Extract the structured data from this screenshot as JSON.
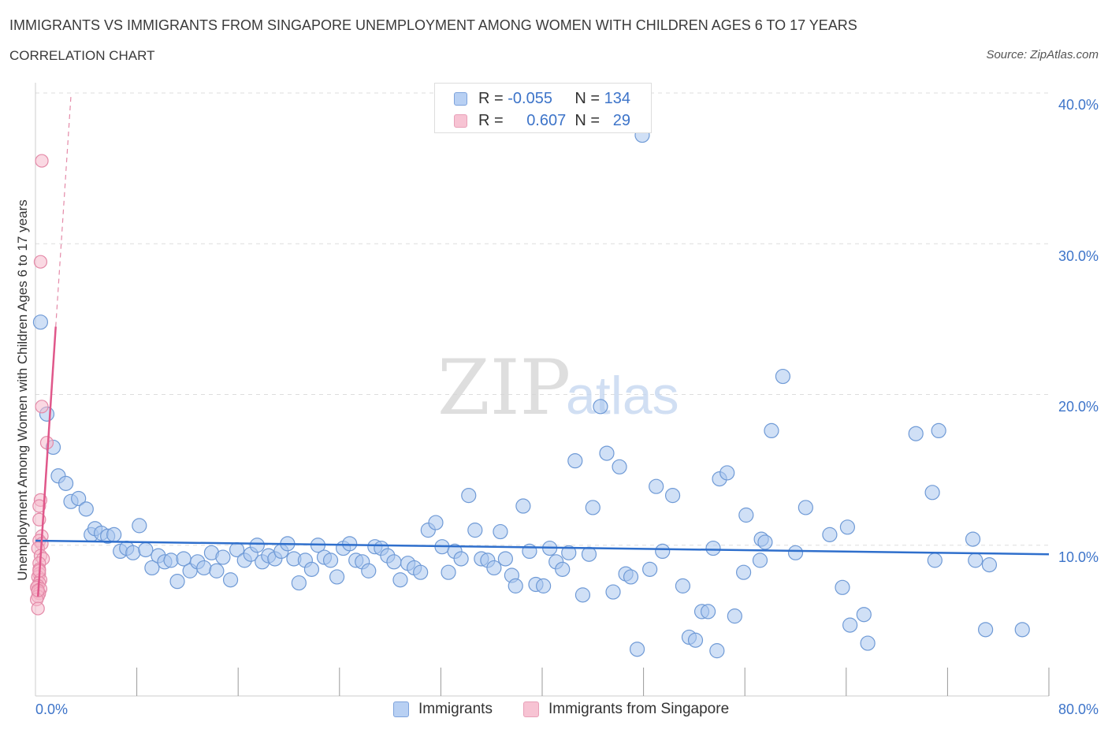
{
  "title": "IMMIGRANTS VS IMMIGRANTS FROM SINGAPORE UNEMPLOYMENT AMONG WOMEN WITH CHILDREN AGES 6 TO 17 YEARS",
  "subtitle": "CORRELATION CHART",
  "source": "Source: ZipAtlas.com",
  "watermark": {
    "zip": "ZIP",
    "atlas": "atlas"
  },
  "legend_top": {
    "rows": [
      {
        "r_label": "R =",
        "r_value": "-0.055",
        "n_label": "N =",
        "n_value": "134"
      },
      {
        "r_label": "R =",
        "r_value": "0.607",
        "n_label": "N =",
        "n_value": "29"
      }
    ]
  },
  "legend_bottom": {
    "immigrants": "Immigrants",
    "singapore": "Immigrants from Singapore"
  },
  "colors": {
    "blue_fill": "#a9c6ef",
    "blue_stroke": "#6f9ad6",
    "blue_line": "#2f6fcc",
    "pink_fill": "#f6b9cc",
    "pink_stroke": "#e48aa8",
    "pink_line": "#e0578a",
    "tick_text": "#3d74c9",
    "grid": "#dddddd"
  },
  "chart_data": {
    "type": "scatter",
    "title": "IMMIGRANTS VS IMMIGRANTS FROM SINGAPORE UNEMPLOYMENT AMONG WOMEN WITH CHILDREN AGES 6 TO 17 YEARS",
    "xlabel": "",
    "ylabel": "Unemployment Among Women with Children Ages 6 to 17 years",
    "xlim": [
      0,
      80
    ],
    "ylim": [
      0,
      40
    ],
    "x_tick_labels": [
      "0.0%",
      "80.0%"
    ],
    "y_ticks": [
      10,
      20,
      30,
      40
    ],
    "y_tick_labels": [
      "10.0%",
      "20.0%",
      "30.0%",
      "40.0%"
    ],
    "grid": true,
    "series": [
      {
        "name": "Immigrants",
        "r": -0.055,
        "n": 134,
        "trend": {
          "x": [
            0,
            80
          ],
          "y": [
            10.3,
            9.4
          ]
        },
        "points": [
          [
            0.4,
            24.8
          ],
          [
            0.9,
            18.7
          ],
          [
            1.4,
            16.5
          ],
          [
            1.8,
            14.6
          ],
          [
            2.4,
            14.1
          ],
          [
            2.8,
            12.9
          ],
          [
            3.4,
            13.1
          ],
          [
            4.0,
            12.4
          ],
          [
            4.4,
            10.7
          ],
          [
            4.7,
            11.1
          ],
          [
            5.2,
            10.8
          ],
          [
            5.7,
            10.6
          ],
          [
            6.2,
            10.7
          ],
          [
            6.7,
            9.6
          ],
          [
            7.2,
            9.8
          ],
          [
            7.7,
            9.5
          ],
          [
            8.2,
            11.3
          ],
          [
            8.7,
            9.7
          ],
          [
            9.2,
            8.5
          ],
          [
            9.7,
            9.3
          ],
          [
            10.2,
            8.9
          ],
          [
            10.7,
            9.0
          ],
          [
            11.2,
            7.6
          ],
          [
            11.7,
            9.1
          ],
          [
            12.2,
            8.3
          ],
          [
            12.8,
            8.9
          ],
          [
            13.3,
            8.5
          ],
          [
            13.9,
            9.5
          ],
          [
            14.3,
            8.3
          ],
          [
            14.8,
            9.2
          ],
          [
            15.4,
            7.7
          ],
          [
            15.9,
            9.7
          ],
          [
            16.5,
            9.0
          ],
          [
            17.0,
            9.4
          ],
          [
            17.5,
            10.0
          ],
          [
            17.9,
            8.9
          ],
          [
            18.4,
            9.3
          ],
          [
            18.9,
            9.1
          ],
          [
            19.4,
            9.6
          ],
          [
            19.9,
            10.1
          ],
          [
            20.4,
            9.1
          ],
          [
            20.8,
            7.5
          ],
          [
            21.3,
            9.0
          ],
          [
            21.8,
            8.4
          ],
          [
            22.3,
            10.0
          ],
          [
            22.8,
            9.2
          ],
          [
            23.3,
            9.0
          ],
          [
            23.8,
            7.9
          ],
          [
            24.3,
            9.8
          ],
          [
            24.8,
            10.1
          ],
          [
            25.3,
            9.0
          ],
          [
            25.8,
            8.9
          ],
          [
            26.3,
            8.3
          ],
          [
            26.8,
            9.9
          ],
          [
            27.3,
            9.8
          ],
          [
            27.8,
            9.3
          ],
          [
            28.3,
            8.9
          ],
          [
            28.8,
            7.7
          ],
          [
            29.4,
            8.8
          ],
          [
            29.9,
            8.5
          ],
          [
            30.4,
            8.2
          ],
          [
            31.0,
            11.0
          ],
          [
            31.6,
            11.5
          ],
          [
            32.1,
            9.9
          ],
          [
            32.6,
            8.2
          ],
          [
            33.1,
            9.6
          ],
          [
            33.6,
            9.1
          ],
          [
            34.2,
            13.3
          ],
          [
            34.7,
            11.0
          ],
          [
            35.2,
            9.1
          ],
          [
            35.7,
            9.0
          ],
          [
            36.2,
            8.5
          ],
          [
            36.7,
            10.9
          ],
          [
            37.1,
            9.1
          ],
          [
            37.6,
            8.0
          ],
          [
            37.9,
            7.3
          ],
          [
            38.5,
            12.6
          ],
          [
            39.0,
            9.6
          ],
          [
            39.5,
            7.4
          ],
          [
            40.1,
            7.3
          ],
          [
            40.6,
            9.8
          ],
          [
            41.1,
            8.9
          ],
          [
            41.6,
            8.4
          ],
          [
            42.1,
            9.5
          ],
          [
            42.6,
            15.6
          ],
          [
            43.2,
            6.7
          ],
          [
            43.7,
            9.4
          ],
          [
            44.0,
            12.5
          ],
          [
            44.6,
            19.2
          ],
          [
            45.1,
            16.1
          ],
          [
            45.6,
            6.9
          ],
          [
            46.1,
            15.2
          ],
          [
            46.6,
            8.1
          ],
          [
            47.0,
            7.9
          ],
          [
            47.5,
            3.1
          ],
          [
            47.9,
            37.2
          ],
          [
            48.5,
            8.4
          ],
          [
            49.0,
            13.9
          ],
          [
            49.5,
            9.6
          ],
          [
            50.3,
            13.3
          ],
          [
            51.1,
            7.3
          ],
          [
            51.6,
            3.9
          ],
          [
            52.1,
            3.7
          ],
          [
            52.6,
            5.6
          ],
          [
            53.1,
            5.6
          ],
          [
            53.5,
            9.8
          ],
          [
            53.8,
            3.0
          ],
          [
            54.0,
            14.4
          ],
          [
            54.6,
            14.8
          ],
          [
            55.2,
            5.3
          ],
          [
            56.1,
            12.0
          ],
          [
            57.3,
            10.4
          ],
          [
            57.6,
            10.2
          ],
          [
            58.1,
            17.6
          ],
          [
            59.0,
            21.2
          ],
          [
            60.8,
            12.5
          ],
          [
            62.7,
            10.7
          ],
          [
            63.7,
            7.2
          ],
          [
            64.3,
            4.7
          ],
          [
            65.4,
            5.4
          ],
          [
            65.7,
            3.5
          ],
          [
            69.5,
            17.4
          ],
          [
            70.8,
            13.5
          ],
          [
            71.3,
            17.6
          ],
          [
            74.0,
            10.4
          ],
          [
            74.2,
            9.0
          ],
          [
            75.3,
            8.7
          ],
          [
            77.9,
            4.4
          ],
          [
            75.0,
            4.4
          ],
          [
            71.0,
            9.0
          ],
          [
            64.1,
            11.2
          ],
          [
            60.0,
            9.5
          ],
          [
            57.2,
            9.0
          ],
          [
            55.9,
            8.2
          ]
        ]
      },
      {
        "name": "Immigrants from Singapore",
        "r": 0.607,
        "n": 29,
        "trend": {
          "x": [
            0.2,
            1.6
          ],
          "y": [
            6.6,
            24.5
          ]
        },
        "trend_extended": {
          "x": [
            1.6,
            2.8
          ],
          "y": [
            24.5,
            39.8
          ]
        },
        "points": [
          [
            0.5,
            35.5
          ],
          [
            0.4,
            28.8
          ],
          [
            0.5,
            19.2
          ],
          [
            0.9,
            16.8
          ],
          [
            0.4,
            13.0
          ],
          [
            0.3,
            12.6
          ],
          [
            0.3,
            11.7
          ],
          [
            0.5,
            10.6
          ],
          [
            0.3,
            10.3
          ],
          [
            0.5,
            10.1
          ],
          [
            0.2,
            9.8
          ],
          [
            0.4,
            9.3
          ],
          [
            0.6,
            9.1
          ],
          [
            0.3,
            8.8
          ],
          [
            0.3,
            8.4
          ],
          [
            0.3,
            8.1
          ],
          [
            0.2,
            7.9
          ],
          [
            0.4,
            7.7
          ],
          [
            0.3,
            7.5
          ],
          [
            0.2,
            7.3
          ],
          [
            0.1,
            7.2
          ],
          [
            0.4,
            7.1
          ],
          [
            0.2,
            6.9
          ],
          [
            0.3,
            6.8
          ],
          [
            0.2,
            6.6
          ],
          [
            0.1,
            6.4
          ],
          [
            0.2,
            5.8
          ],
          [
            0.3,
            8.3
          ],
          [
            0.2,
            7.0
          ]
        ]
      }
    ]
  }
}
